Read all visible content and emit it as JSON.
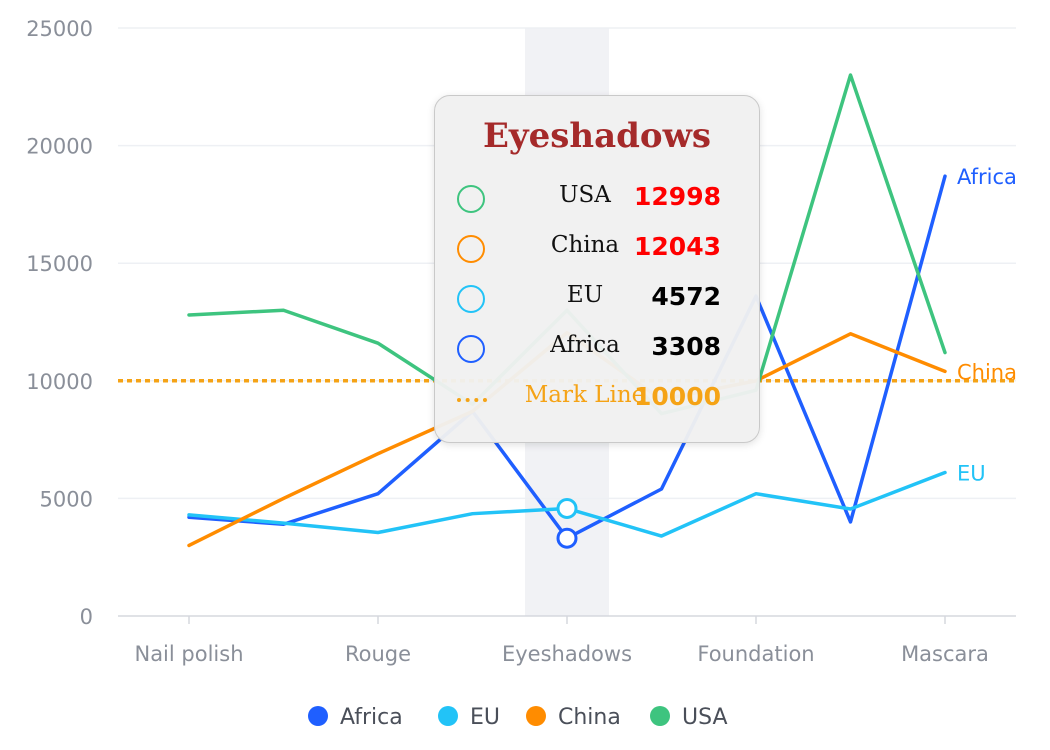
{
  "chart_data": {
    "type": "line",
    "categories": [
      "Nail polish",
      "",
      "Rouge",
      "",
      "Eyeshadows",
      "",
      "Foundation",
      "",
      "Mascara"
    ],
    "series": [
      {
        "name": "Africa",
        "color": "#1f5fff",
        "values": [
          4200,
          3900,
          5200,
          8700,
          3308,
          5400,
          13600,
          4000,
          18700
        ]
      },
      {
        "name": "EU",
        "color": "#22c3f7",
        "values": [
          4300,
          3950,
          3550,
          4350,
          4572,
          3400,
          5200,
          4550,
          6100
        ]
      },
      {
        "name": "China",
        "color": "#ff8c00",
        "values": [
          3000,
          5000,
          6900,
          8700,
          12043,
          9200,
          10000,
          12000,
          10400
        ]
      },
      {
        "name": "USA",
        "color": "#3ec47f",
        "values": [
          12800,
          13000,
          11600,
          9000,
          12998,
          8600,
          9600,
          23000,
          11200
        ]
      }
    ],
    "ylim": [
      0,
      25000
    ],
    "yticks": [
      "0",
      "5000",
      "10000",
      "15000",
      "20000",
      "25000"
    ],
    "xticks": [
      "Nail polish",
      "Rouge",
      "Eyeshadows",
      "Foundation",
      "Mascara"
    ],
    "mark_line": {
      "label": "Mark Line",
      "value": 10000,
      "color": "#f5a316"
    },
    "highlight_category": "Eyeshadows",
    "end_labels": [
      "Africa",
      "China",
      "EU"
    ],
    "legend": [
      "Africa",
      "EU",
      "China",
      "USA"
    ],
    "legend_position": "bottom",
    "grid": true
  },
  "tooltip": {
    "title": "Eyeshadows",
    "rows": [
      {
        "name": "USA",
        "value": "12998",
        "marker_color": "#3ec47f",
        "value_color": "#ff0000"
      },
      {
        "name": "China",
        "value": "12043",
        "marker_color": "#ff8c00",
        "value_color": "#ff0000"
      },
      {
        "name": "EU",
        "value": "4572",
        "marker_color": "#22c3f7",
        "value_color": "#000000"
      },
      {
        "name": "Africa",
        "value": "3308",
        "marker_color": "#1f5fff",
        "value_color": "#000000"
      }
    ],
    "mark_line": {
      "name": "Mark Line",
      "value": "10000",
      "color": "#f5a316"
    }
  }
}
